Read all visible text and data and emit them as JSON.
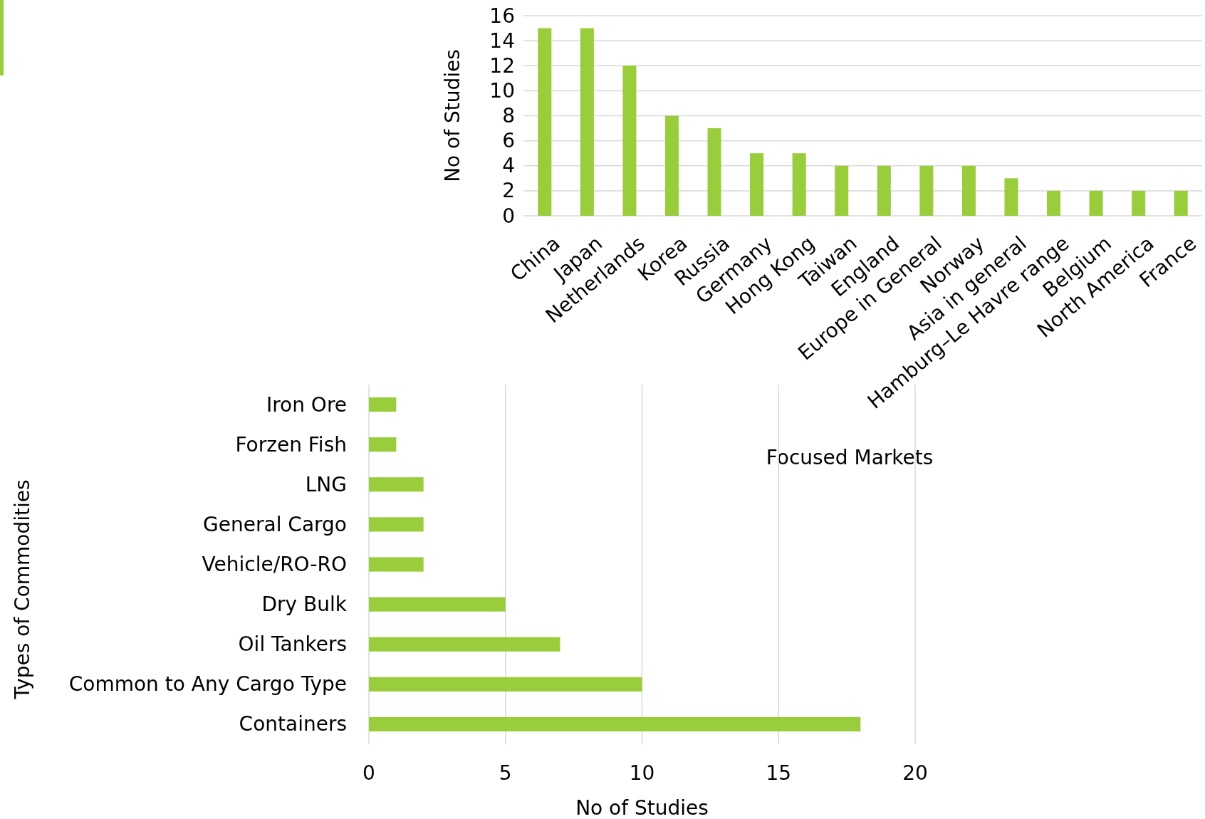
{
  "chart_data": [
    {
      "type": "bar",
      "categories": [
        "China",
        "Japan",
        "Netherlands",
        "Korea",
        "Russia",
        "Germany",
        "Hong Kong",
        "Taiwan",
        "England",
        "Europe in General",
        "Norway",
        "Asia in general",
        "Hamburg–Le Havre range",
        "Belgium",
        "North America",
        "France"
      ],
      "values": [
        15,
        15,
        12,
        8,
        7,
        5,
        5,
        4,
        4,
        4,
        4,
        3,
        2,
        2,
        2,
        2
      ],
      "color": "#9acd3c",
      "ylim": [
        0,
        16
      ],
      "yticks": [
        0,
        2,
        4,
        6,
        8,
        10,
        12,
        14,
        16
      ],
      "grid": "y",
      "ylabel": "No of Studies",
      "xlabel": "Focused Markets"
    },
    {
      "type": "bar",
      "orientation": "horizontal",
      "categories": [
        "Iron Ore",
        "Forzen Fish",
        "LNG",
        "General Cargo",
        "Vehicle/RO-RO",
        "Dry Bulk",
        "Oil Tankers",
        "Common to Any Cargo Type",
        "Containers"
      ],
      "values": [
        1,
        1,
        2,
        2,
        2,
        5,
        7,
        10,
        18
      ],
      "color": "#9acd3c",
      "xlim": [
        0,
        20
      ],
      "xticks": [
        0,
        5,
        10,
        15,
        20
      ],
      "grid": "x",
      "xlabel": "No of Studies",
      "ylabel": "Types of Commodities"
    }
  ]
}
